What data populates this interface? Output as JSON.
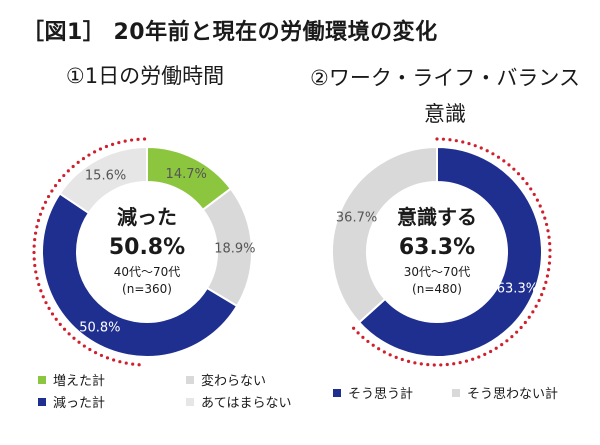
{
  "figure_title": "［図1］ 20年前と現在の労働環境の変化",
  "colors": {
    "increase": "#8cc63f",
    "same": "#d9d9d9",
    "decrease": "#1f2f8f",
    "no_change": "#e6e6e6",
    "think_so": "#1f2f8f",
    "dont_think": "#d9d9d9",
    "dotted_ring": "#d0202e"
  },
  "chart_data": [
    {
      "type": "pie",
      "title": "①1日の労働時間",
      "center": {
        "headline": "減った",
        "value": "50.8%",
        "sub1": "40代～70代",
        "sub2": "(n=360)"
      },
      "series": [
        {
          "name": "増えた計",
          "value": 14.7,
          "label": "14.7%",
          "color": "#8cc63f"
        },
        {
          "name": "変わらない",
          "value": 18.9,
          "label": "18.9%",
          "color": "#d9d9d9"
        },
        {
          "name": "減った計",
          "value": 50.8,
          "label": "50.8%",
          "color": "#1f2f8f"
        },
        {
          "name": "あてはまらない",
          "value": 15.6,
          "label": "15.6%",
          "color": "#e6e6e6"
        }
      ]
    },
    {
      "type": "pie",
      "title_line1": "②ワーク・ライフ・バランス",
      "title_line2": "意識",
      "center": {
        "headline": "意識する",
        "value": "63.3%",
        "sub1": "30代～70代",
        "sub2": "(n=480)"
      },
      "series": [
        {
          "name": "そう思う計",
          "value": 63.3,
          "label": "63.3%",
          "color": "#1f2f8f"
        },
        {
          "name": "そう思わない計",
          "value": 36.7,
          "label": "36.7%",
          "color": "#d9d9d9"
        }
      ]
    }
  ]
}
